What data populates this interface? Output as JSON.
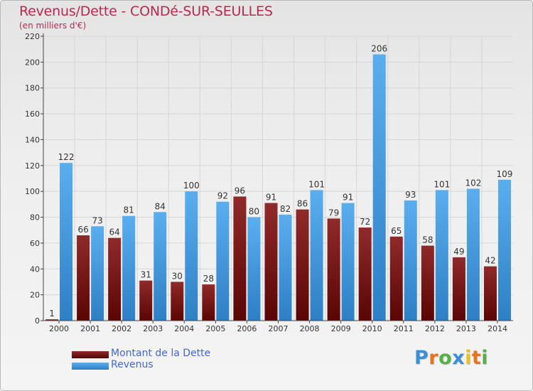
{
  "chart_data": {
    "type": "bar",
    "title": "Revenus/Dette - CONDé-SUR-SEULLES",
    "subtitle": "(en milliers d'€)",
    "categories": [
      "2000",
      "2001",
      "2002",
      "2003",
      "2004",
      "2005",
      "2006",
      "2007",
      "2008",
      "2009",
      "2010",
      "2011",
      "2012",
      "2013",
      "2014"
    ],
    "series": [
      {
        "name": "Montant de la Dette",
        "color": "#8b1a1a",
        "values": [
          1,
          66,
          64,
          31,
          30,
          28,
          96,
          91,
          86,
          79,
          72,
          65,
          58,
          49,
          42
        ]
      },
      {
        "name": "Revenus",
        "color": "#4aa3e8",
        "values": [
          122,
          73,
          81,
          84,
          100,
          92,
          80,
          82,
          101,
          91,
          206,
          93,
          101,
          102,
          109
        ]
      }
    ],
    "ylim": [
      0,
      220
    ],
    "yticks": [
      0,
      20,
      40,
      60,
      80,
      100,
      120,
      140,
      160,
      180,
      200,
      220
    ],
    "grid": true,
    "legend": "bottom-left"
  },
  "legend": {
    "items": [
      {
        "label": "Montant de la Dette",
        "color": "#8b1a1a"
      },
      {
        "label": "Revenus",
        "color": "#4aa3e8"
      }
    ]
  },
  "logo": {
    "letters": [
      "P",
      "r",
      "o",
      "x",
      "i",
      "t",
      "i"
    ],
    "colors": [
      "#3b8fd8",
      "#e8731c",
      "#56b04a",
      "#3b8fd8",
      "#e8c21c",
      "#e8731c",
      "#56b04a"
    ]
  }
}
